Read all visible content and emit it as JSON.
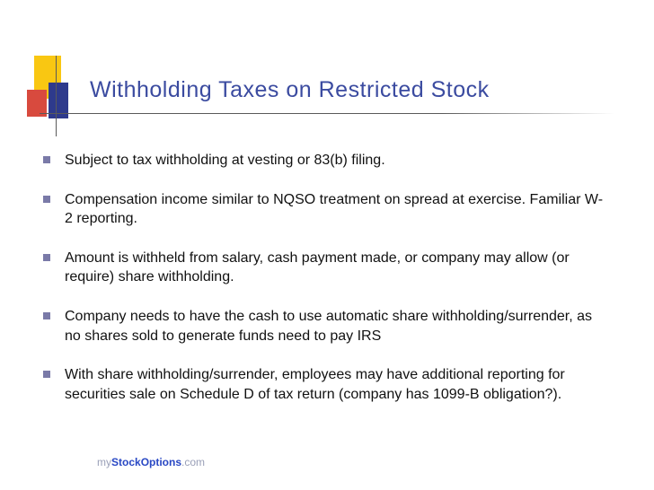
{
  "title": "Withholding Taxes on Restricted Stock",
  "title_color": "#3b4ba0",
  "title_fontsize": 25,
  "logo": {
    "yellow": "#f9c712",
    "blue": "#2e3a8c",
    "red": "#d84a3e"
  },
  "bullet_marker_color": "#7a7aa8",
  "body_text_color": "#111111",
  "body_fontsize": 16,
  "background_color": "#ffffff",
  "bullets": [
    "Subject to tax withholding at vesting or 83(b) filing.",
    "Compensation income similar to NQSO treatment on spread at exercise. Familiar W-2 reporting.",
    "Amount is withheld from salary, cash payment made, or company may allow (or require) share withholding.",
    "Company needs to have the cash to use automatic share withholding/surrender, as no shares sold to generate funds need to pay IRS",
    "With share withholding/surrender, employees may have additional reporting for securities sale on Schedule D of tax return (company has 1099-B obligation?)."
  ],
  "watermark": {
    "my": "my",
    "stock": "Stock",
    "options": "Options",
    "com": ".com",
    "light_color": "#9aa0b8",
    "bold_color": "#2948c4"
  }
}
